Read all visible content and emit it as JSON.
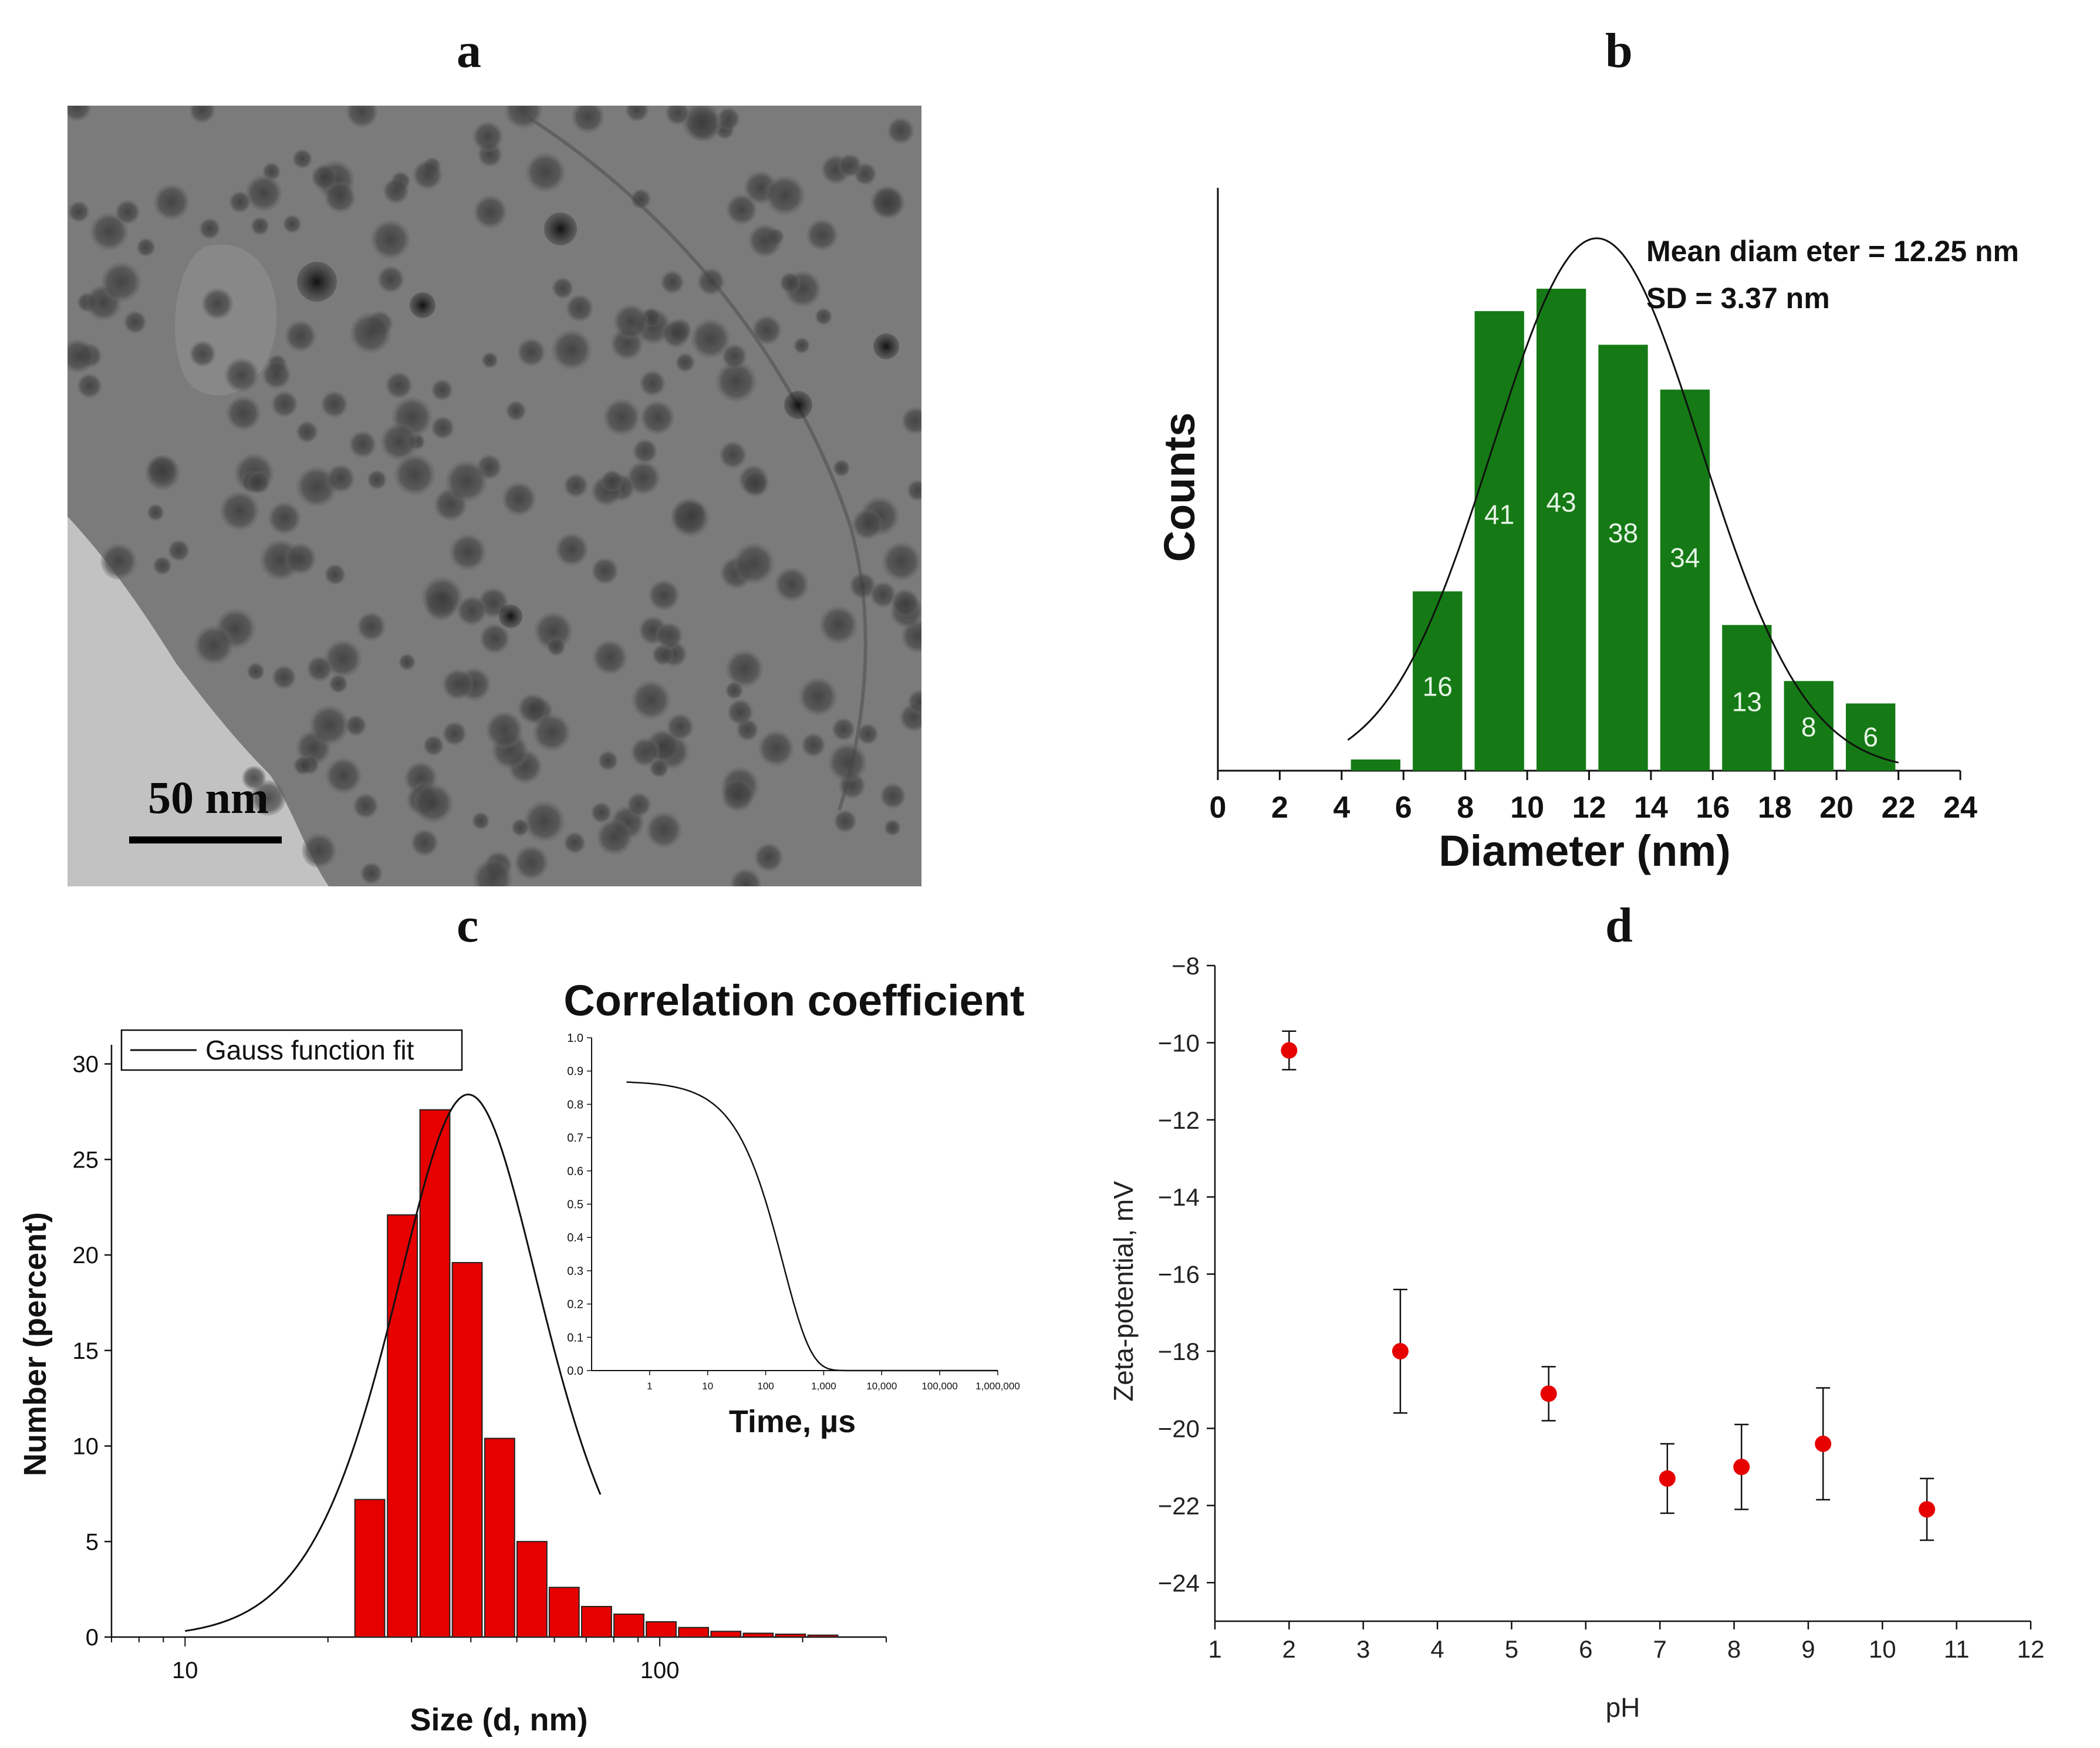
{
  "panels": {
    "a": "a",
    "b": "b",
    "c": "c",
    "d": "d"
  },
  "colors": {
    "green_bar": "#157a15",
    "red_bar": "#e60000",
    "red_point": "#e60000",
    "tem_bg": "#7b7b7b",
    "axis": "#111111"
  },
  "tem_image": {
    "scale_bar_label": "50 nm"
  },
  "chart_data": [
    {
      "id": "b",
      "type": "bar",
      "title": "",
      "xlabel": "Diameter (nm)",
      "ylabel": "Counts",
      "xlim": [
        0,
        24
      ],
      "ylim": [
        0,
        52
      ],
      "x_ticks": [
        0,
        2,
        4,
        6,
        8,
        10,
        12,
        14,
        16,
        18,
        20,
        22,
        24
      ],
      "bins": [
        {
          "x0": 4.3,
          "x1": 5.9,
          "value": 1,
          "label": ""
        },
        {
          "x0": 6.3,
          "x1": 7.9,
          "value": 16,
          "label": "16"
        },
        {
          "x0": 8.3,
          "x1": 9.9,
          "value": 41,
          "label": "41"
        },
        {
          "x0": 10.3,
          "x1": 11.9,
          "value": 43,
          "label": "43"
        },
        {
          "x0": 12.3,
          "x1": 13.9,
          "value": 38,
          "label": "38"
        },
        {
          "x0": 14.3,
          "x1": 15.9,
          "value": 34,
          "label": "34"
        },
        {
          "x0": 16.3,
          "x1": 17.9,
          "value": 13,
          "label": "13"
        },
        {
          "x0": 18.3,
          "x1": 19.9,
          "value": 8,
          "label": "8"
        },
        {
          "x0": 20.3,
          "x1": 21.9,
          "value": 6,
          "label": "6"
        }
      ],
      "fit": {
        "type": "gauss",
        "mean": 12.25,
        "sd": 3.37,
        "peak": 47.5,
        "x_from": 4.2,
        "x_to": 22.0
      },
      "annotations": [
        "Mean diam eter = 12.25 nm",
        "SD = 3.37 nm"
      ]
    },
    {
      "id": "c",
      "type": "bar",
      "xscale": "log",
      "title": "",
      "xlabel": "Size (d, nm)",
      "ylabel": "Number (percent)",
      "xlim": [
        7,
        300
      ],
      "ylim": [
        0,
        31
      ],
      "x_ticks": [
        10,
        100
      ],
      "y_ticks": [
        0,
        5,
        10,
        15,
        20,
        25,
        30
      ],
      "legend": {
        "entries": [
          "Gauss function fit"
        ],
        "position": "top-left"
      },
      "bins": [
        {
          "center": 24.5,
          "value": 7.2
        },
        {
          "center": 28.7,
          "value": 22.1
        },
        {
          "center": 33.6,
          "value": 27.6
        },
        {
          "center": 39.3,
          "value": 19.6
        },
        {
          "center": 46.0,
          "value": 10.4
        },
        {
          "center": 53.8,
          "value": 5.0
        },
        {
          "center": 62.9,
          "value": 2.6
        },
        {
          "center": 73.6,
          "value": 1.6
        },
        {
          "center": 86.1,
          "value": 1.2
        },
        {
          "center": 100.7,
          "value": 0.8
        },
        {
          "center": 117.8,
          "value": 0.5
        },
        {
          "center": 137.8,
          "value": 0.3
        },
        {
          "center": 161.2,
          "value": 0.2
        },
        {
          "center": 188.6,
          "value": 0.15
        },
        {
          "center": 220.6,
          "value": 0.1
        }
      ],
      "fit": {
        "type": "gauss-log",
        "center": 39.5,
        "peak": 28.4,
        "sigma_log10": 0.155,
        "x_from": 10,
        "x_to": 75
      },
      "inset": {
        "type": "line",
        "title": "Correlation coefficient",
        "xlabel": "Time, µs",
        "ylabel": "",
        "xscale": "log",
        "xlim": [
          0.1,
          1000000
        ],
        "ylim": [
          0,
          1
        ],
        "y_ticks": [
          "0.0",
          "0.1",
          "0.2",
          "0.3",
          "0.4",
          "0.5",
          "0.6",
          "0.7",
          "0.8",
          "0.9",
          "1.0"
        ],
        "x_tick_labels": [
          "1",
          "10",
          "100",
          "1,000",
          "10,000",
          "100,000",
          "1,000,000"
        ],
        "x_tick_values": [
          1,
          10,
          100,
          1000,
          10000,
          100000,
          1000000
        ],
        "curve": {
          "amplitude": 0.87,
          "tau": 200,
          "beta": 0.9,
          "x_from": 0.4,
          "x_to": 1000000
        }
      }
    },
    {
      "id": "d",
      "type": "scatter",
      "title": "",
      "xlabel": "pH",
      "ylabel": "Zeta-potential, mV",
      "xlim": [
        1,
        12
      ],
      "ylim": [
        -25,
        -8
      ],
      "x_ticks": [
        1,
        2,
        3,
        4,
        5,
        6,
        7,
        8,
        9,
        10,
        11,
        12
      ],
      "y_ticks": [
        -8,
        -10,
        -12,
        -14,
        -16,
        -18,
        -20,
        -22,
        -24
      ],
      "points": [
        {
          "x": 2.0,
          "y": -10.2,
          "err": 0.5
        },
        {
          "x": 3.5,
          "y": -18.0,
          "err": 1.6
        },
        {
          "x": 5.5,
          "y": -19.1,
          "err": 0.7
        },
        {
          "x": 7.1,
          "y": -21.3,
          "err": 0.9
        },
        {
          "x": 8.1,
          "y": -21.0,
          "err": 1.1
        },
        {
          "x": 9.2,
          "y": -20.4,
          "err": 1.45
        },
        {
          "x": 10.6,
          "y": -22.1,
          "err": 0.8
        }
      ]
    }
  ]
}
